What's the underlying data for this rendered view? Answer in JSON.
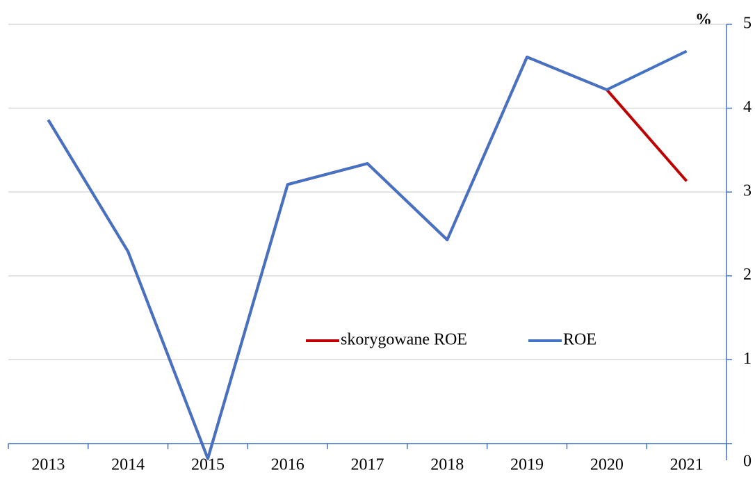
{
  "chart_data": {
    "type": "line",
    "unit_label": "%",
    "categories": [
      "2013",
      "2014",
      "2015",
      "2016",
      "2017",
      "2018",
      "2019",
      "2020",
      "2021"
    ],
    "series": [
      {
        "name": "skorygowane ROE",
        "color": "#c00000",
        "values": [
          3.86,
          2.29,
          -0.18,
          3.09,
          3.34,
          2.43,
          4.61,
          4.22,
          3.13
        ]
      },
      {
        "name": "ROE",
        "color": "#4472c4",
        "values": [
          3.86,
          2.29,
          -0.18,
          3.09,
          3.34,
          2.43,
          4.61,
          4.22,
          4.68
        ]
      }
    ],
    "ylim": [
      -0.2,
      5
    ],
    "yticks": [
      0,
      1,
      2,
      3,
      4,
      5
    ],
    "y_axis_side": "right",
    "grid": true,
    "legend": "center"
  }
}
